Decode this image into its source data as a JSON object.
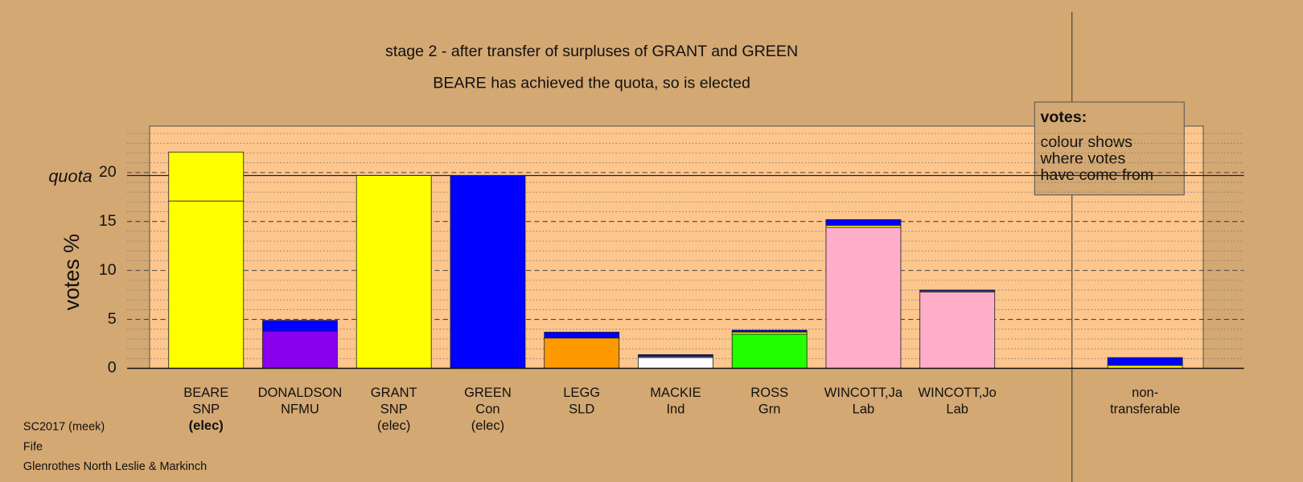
{
  "chart_data": {
    "type": "bar",
    "title": "stage 2 - after transfer of surpluses of GRANT and GREEN",
    "subtitle": "BEARE has achieved the quota, so is elected",
    "y_label": "votes %",
    "quota_label": "quota",
    "quota": 19.7,
    "categories": [
      [
        "BEARE",
        "SNP",
        "(elec)"
      ],
      [
        "DONALDSON",
        "NFMU"
      ],
      [
        "GRANT",
        "SNP",
        "(elec)"
      ],
      [
        "GREEN",
        "Con",
        "(elec)"
      ],
      [
        "LEGG",
        "SLD"
      ],
      [
        "MACKIE",
        "Ind"
      ],
      [
        "ROSS",
        "Grn"
      ],
      [
        "WINCOTT,Ja",
        "Lab"
      ],
      [
        "WINCOTT,Jo",
        "Lab"
      ],
      null,
      [
        "non-",
        "transferable"
      ]
    ],
    "series": [
      {
        "colors": [
          "#ffff00",
          "#8800ee",
          "#ffff00",
          "#0000ff",
          "#ff9900",
          "#ffffff",
          "#22ff00",
          "#ffaec9",
          "#ffaec9",
          null,
          null
        ],
        "values": [
          17.1,
          3.8,
          19.7,
          19.7,
          3.1,
          1.1,
          3.5,
          14.4,
          7.8,
          null,
          null
        ]
      },
      {
        "color": "#ffff00",
        "values": [
          5.0,
          0,
          0,
          0,
          0,
          0.1,
          0.2,
          0.2,
          0.1,
          null,
          0.3
        ]
      },
      {
        "color": "#0000ff",
        "values": [
          0,
          1.1,
          0,
          0,
          0.6,
          0.2,
          0.2,
          0.6,
          0.1,
          null,
          0.8
        ]
      }
    ],
    "ylim": [
      0,
      24.75
    ],
    "yticks": [
      0,
      5,
      10,
      15,
      20
    ],
    "minor_yticks": [
      1,
      2,
      3,
      4,
      6,
      7,
      8,
      9,
      11,
      12,
      13,
      14,
      16,
      17,
      18,
      19,
      21,
      22,
      23,
      24
    ],
    "grid": true,
    "legend_box": [
      "votes:",
      "colour shows",
      "where votes",
      "have come from"
    ],
    "footer": [
      "SC2017 (meek)",
      "Fife",
      "Glenrothes North Leslie & Markinch"
    ]
  }
}
